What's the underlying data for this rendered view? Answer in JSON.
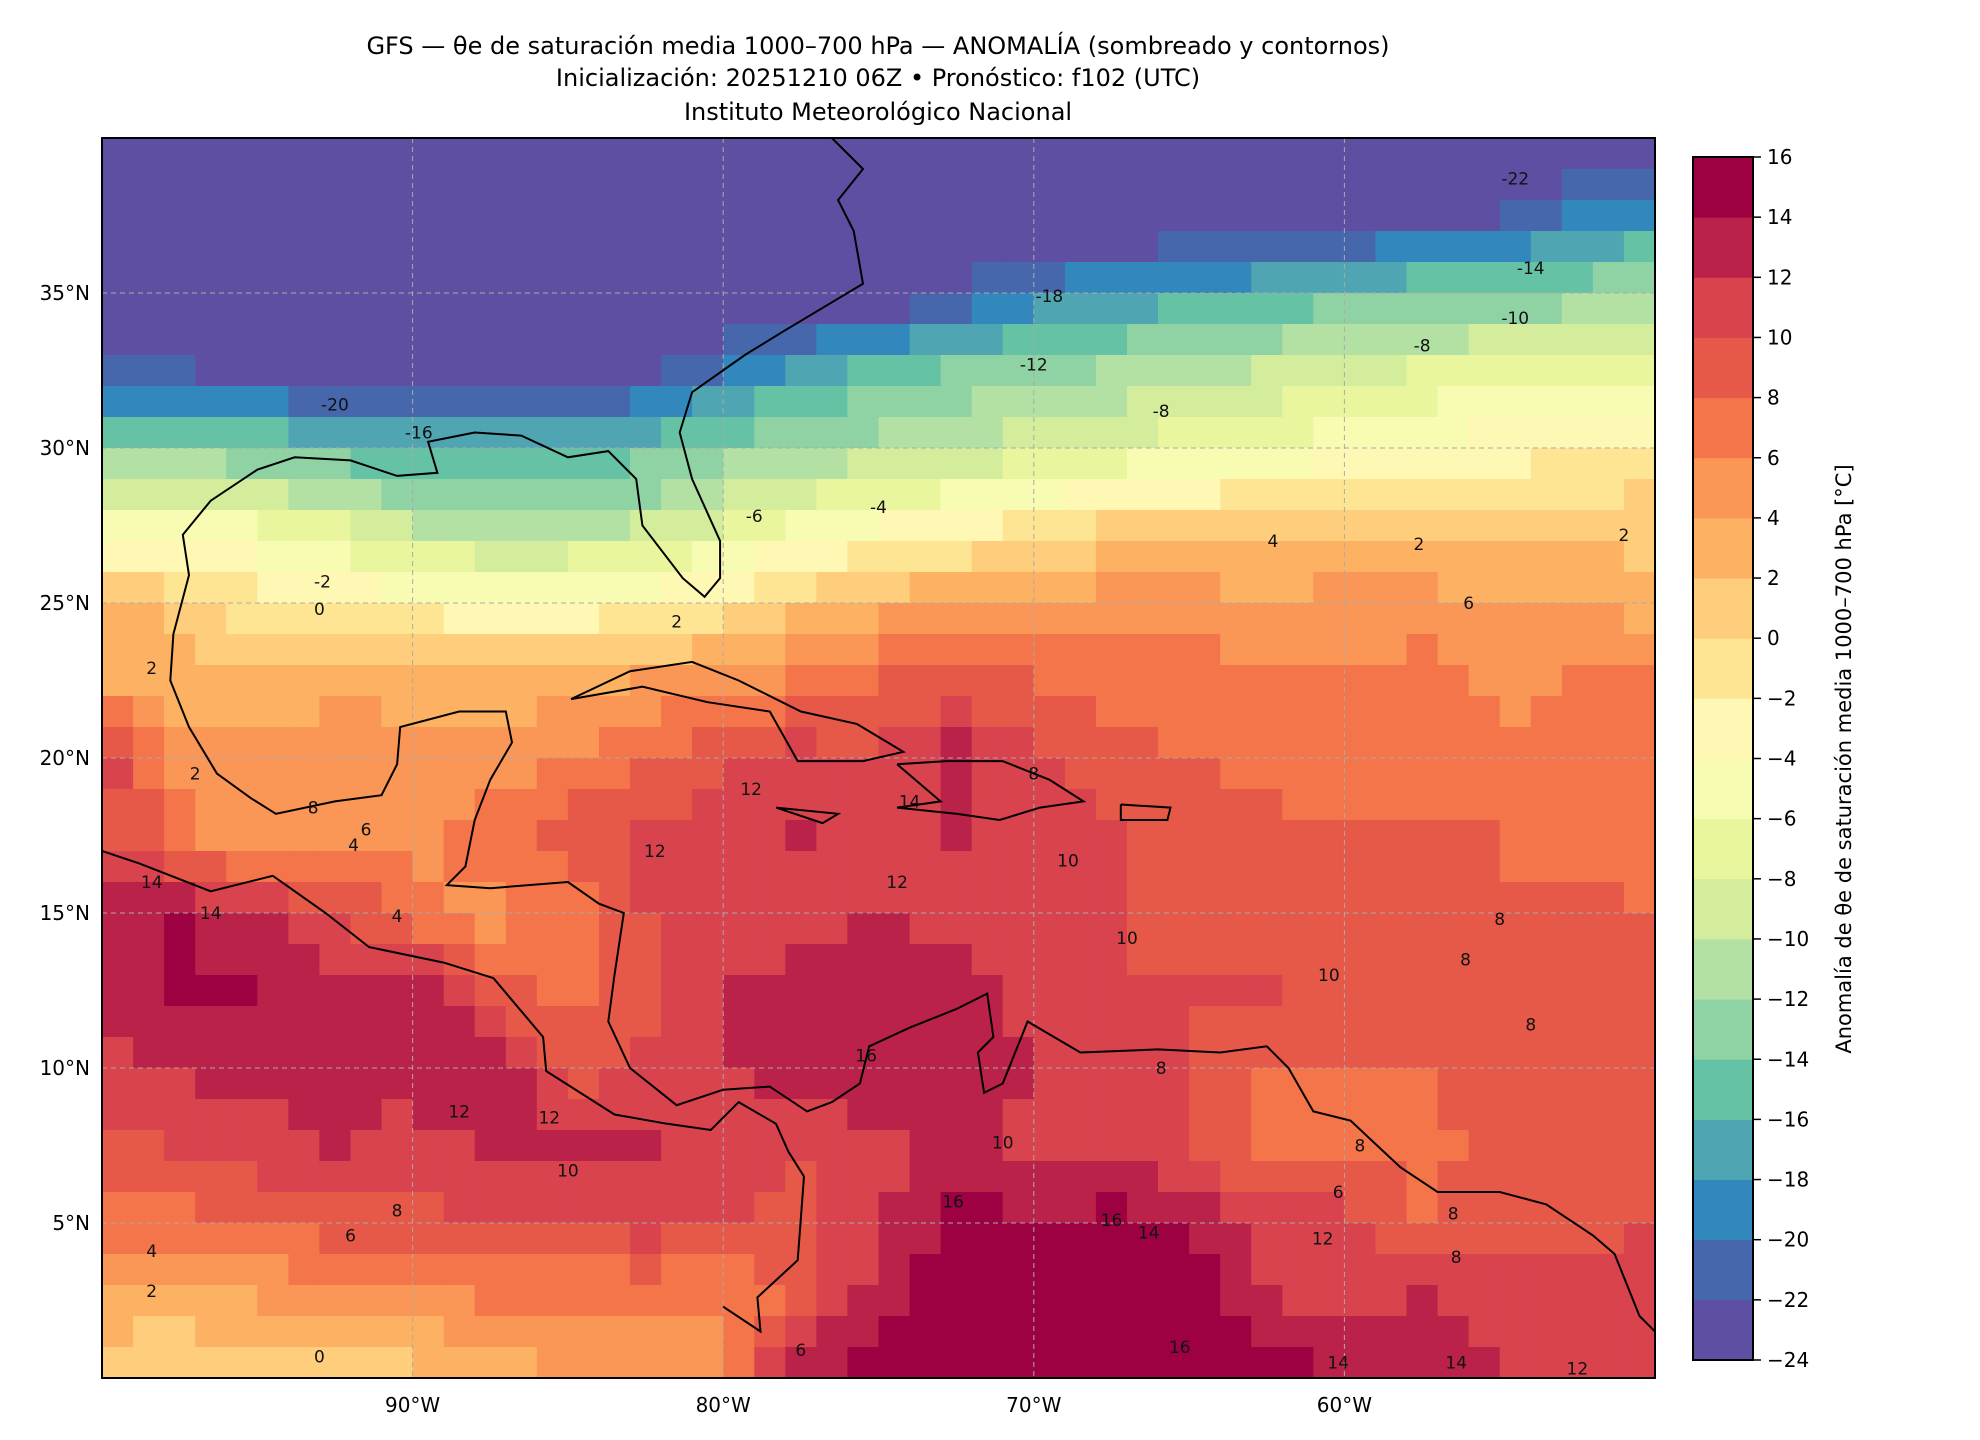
{
  "chart_data": {
    "type": "heatmap",
    "title_lines": [
      "GFS — θe de saturación media 1000–700 hPa — ANOMALÍA (sombreado y contornos)",
      "Inicialización: 20251210 06Z   •   Pronóstico: f102 (UTC)",
      "Instituto Meteorológico Nacional"
    ],
    "colorbar_label": "Anomalía de θe de saturación media 1000–700 hPa [°C]",
    "xlim": [
      -100,
      -50
    ],
    "ylim": [
      0,
      40
    ],
    "x_ticks": [
      {
        "value": -90,
        "label": "90°W"
      },
      {
        "value": -80,
        "label": "80°W"
      },
      {
        "value": -70,
        "label": "70°W"
      },
      {
        "value": -60,
        "label": "60°W"
      }
    ],
    "y_ticks": [
      {
        "value": 35,
        "label": "35°N"
      },
      {
        "value": 30,
        "label": "30°N"
      },
      {
        "value": 25,
        "label": "25°N"
      },
      {
        "value": 20,
        "label": "20°N"
      },
      {
        "value": 15,
        "label": "15°N"
      },
      {
        "value": 10,
        "label": "10°N"
      },
      {
        "value": 5,
        "label": "5°N"
      }
    ],
    "grid": true,
    "colorbar_ticks": [
      "16",
      "14",
      "12",
      "10",
      "8",
      "6",
      "4",
      "2",
      "0",
      "−2",
      "−4",
      "−6",
      "−8",
      "−10",
      "−12",
      "−14",
      "−16",
      "−18",
      "−20",
      "−22",
      "−24"
    ],
    "levels": [
      -24,
      -22,
      -20,
      -18,
      -16,
      -14,
      -12,
      -10,
      -8,
      -6,
      -4,
      -2,
      0,
      2,
      4,
      6,
      8,
      10,
      12,
      14,
      16
    ],
    "level_colors": [
      "#5e4fa2",
      "#4767ad",
      "#3288bd",
      "#4fa5b1",
      "#66c2a5",
      "#8fd2a4",
      "#b3e0a3",
      "#d3ed9c",
      "#e9f69d",
      "#f8fbb2",
      "#fff8b4",
      "#fee593",
      "#fece7c",
      "#fdb163",
      "#fa9656",
      "#f47549",
      "#e65848",
      "#d8434e",
      "#bb2249",
      "#9e0142"
    ],
    "grid_lons": [
      -100,
      -97.5,
      -95,
      -92.5,
      -90,
      -87.5,
      -85,
      -82.5,
      -80,
      -77.5,
      -75,
      -72.5,
      -70,
      -67.5,
      -65,
      -62.5,
      -60,
      -57.5,
      -55,
      -52.5,
      -50
    ],
    "grid_lats": [
      40,
      37.5,
      35,
      32.5,
      30,
      27.5,
      25,
      22.5,
      20,
      17.5,
      15,
      12.5,
      10,
      7.5,
      5,
      2.5,
      0
    ],
    "values": [
      [
        -25,
        -25,
        -25,
        -25,
        -25,
        -25,
        -25,
        -25,
        -25,
        -25,
        -25,
        -25,
        -25,
        -25,
        -25,
        -25,
        -25,
        -25,
        -25,
        -24,
        -24
      ],
      [
        -25,
        -25,
        -25,
        -25,
        -25,
        -25,
        -25,
        -25,
        -25,
        -25,
        -25,
        -25,
        -25,
        -25,
        -25,
        -25,
        -24,
        -23,
        -22,
        -20,
        -18
      ],
      [
        -25,
        -25,
        -25,
        -25,
        -25,
        -25,
        -25,
        -25,
        -25,
        -25,
        -25,
        -22,
        -19,
        -18,
        -17,
        -16,
        -15,
        -14,
        -14,
        -13,
        -12
      ],
      [
        -22,
        -22,
        -23,
        -24,
        -24,
        -25,
        -24,
        -23,
        -20,
        -17,
        -15,
        -14,
        -13,
        -12,
        -11,
        -10,
        -9,
        -8,
        -7,
        -7,
        -6
      ],
      [
        -13,
        -13,
        -14,
        -15,
        -16,
        -16,
        -16,
        -15,
        -13,
        -12,
        -11,
        -10,
        -9,
        -8,
        -7,
        -6,
        -5,
        -4,
        -3,
        -2,
        -1
      ],
      [
        -6,
        -5,
        -6,
        -8,
        -10,
        -11,
        -11,
        -10,
        -8,
        -6,
        -4,
        -3,
        -1,
        0,
        1,
        1,
        1,
        1,
        1,
        1,
        1
      ],
      [
        3,
        1,
        -1,
        -2,
        -3,
        -4,
        -4,
        -3,
        -1,
        1,
        3,
        4,
        4,
        5,
        5,
        4,
        5,
        5,
        4,
        4,
        3
      ],
      [
        4,
        3,
        2,
        3,
        3,
        3,
        3,
        4,
        5,
        6,
        8,
        8,
        8,
        7,
        7,
        6,
        6,
        7,
        5,
        6,
        6
      ],
      [
        12,
        5,
        5,
        6,
        5,
        5,
        6,
        8,
        10,
        11,
        10,
        13,
        10,
        9,
        8,
        7,
        7,
        7,
        7,
        7,
        7
      ],
      [
        10,
        7,
        4,
        5,
        5,
        7,
        9,
        10,
        11,
        12,
        11,
        12,
        11,
        10,
        9,
        9,
        8,
        8,
        8,
        7,
        7
      ],
      [
        13,
        14,
        12,
        10,
        7,
        5,
        7,
        10,
        11,
        11,
        12,
        11,
        11,
        10,
        9,
        9,
        9,
        9,
        8,
        9,
        8
      ],
      [
        13,
        14,
        14,
        13,
        14,
        9,
        7,
        9,
        12,
        13,
        14,
        13,
        11,
        10,
        10,
        10,
        9,
        9,
        8,
        8,
        8
      ],
      [
        11,
        12,
        13,
        13,
        13,
        14,
        9,
        11,
        12,
        13,
        14,
        13,
        12,
        11,
        10,
        8,
        8,
        8,
        9,
        9,
        9
      ],
      [
        9,
        10,
        11,
        12,
        11,
        12,
        12,
        12,
        11,
        10,
        11,
        13,
        11,
        11,
        10,
        7,
        8,
        7,
        9,
        9,
        10
      ],
      [
        7,
        7,
        8,
        9,
        9,
        10,
        10,
        11,
        10,
        9,
        12,
        15,
        14,
        15,
        14,
        11,
        11,
        8,
        9,
        9,
        10
      ],
      [
        3,
        3,
        4,
        5,
        5,
        6,
        6,
        6,
        6,
        9,
        13,
        15,
        15,
        14,
        15,
        12,
        11,
        12,
        11,
        11,
        12
      ],
      [
        1,
        0,
        0,
        0,
        1,
        3,
        4,
        5,
        6,
        14,
        15,
        16,
        16,
        16,
        16,
        15,
        14,
        13,
        12,
        12,
        12
      ]
    ],
    "contour_labels": [
      {
        "text": "-22",
        "lon": -54.5,
        "lat": 38.7
      },
      {
        "text": "-14",
        "lon": -54.0,
        "lat": 35.8
      },
      {
        "text": "-10",
        "lon": -54.5,
        "lat": 34.2
      },
      {
        "text": "-8",
        "lon": -57.5,
        "lat": 33.3
      },
      {
        "text": "-18",
        "lon": -69.5,
        "lat": 34.9
      },
      {
        "text": "-12",
        "lon": -70.0,
        "lat": 32.7
      },
      {
        "text": "-8",
        "lon": -65.9,
        "lat": 31.2
      },
      {
        "text": "-20",
        "lon": -92.5,
        "lat": 31.4
      },
      {
        "text": "-16",
        "lon": -89.8,
        "lat": 30.5
      },
      {
        "text": "-6",
        "lon": -79.0,
        "lat": 27.8
      },
      {
        "text": "-4",
        "lon": -75.0,
        "lat": 28.1
      },
      {
        "text": "-2",
        "lon": -92.9,
        "lat": 25.7
      },
      {
        "text": "0",
        "lon": -93.0,
        "lat": 24.8
      },
      {
        "text": "2",
        "lon": -81.5,
        "lat": 24.4
      },
      {
        "text": "4",
        "lon": -62.3,
        "lat": 27.0
      },
      {
        "text": "2",
        "lon": -57.6,
        "lat": 26.9
      },
      {
        "text": "2",
        "lon": -51.0,
        "lat": 27.2
      },
      {
        "text": "6",
        "lon": -56.0,
        "lat": 25.0
      },
      {
        "text": "2",
        "lon": -98.4,
        "lat": 22.9
      },
      {
        "text": "2",
        "lon": -97.0,
        "lat": 19.5
      },
      {
        "text": "8",
        "lon": -93.2,
        "lat": 18.4
      },
      {
        "text": "6",
        "lon": -91.5,
        "lat": 17.7
      },
      {
        "text": "4",
        "lon": -91.9,
        "lat": 17.2
      },
      {
        "text": "14",
        "lon": -98.4,
        "lat": 16.0
      },
      {
        "text": "14",
        "lon": -96.5,
        "lat": 15.0
      },
      {
        "text": "4",
        "lon": -90.5,
        "lat": 14.9
      },
      {
        "text": "12",
        "lon": -79.1,
        "lat": 19.0
      },
      {
        "text": "14",
        "lon": -74.0,
        "lat": 18.6
      },
      {
        "text": "8",
        "lon": -70.0,
        "lat": 19.5
      },
      {
        "text": "12",
        "lon": -82.2,
        "lat": 17.0
      },
      {
        "text": "12",
        "lon": -74.4,
        "lat": 16.0
      },
      {
        "text": "10",
        "lon": -68.9,
        "lat": 16.7
      },
      {
        "text": "10",
        "lon": -67.0,
        "lat": 14.2
      },
      {
        "text": "8",
        "lon": -55.0,
        "lat": 14.8
      },
      {
        "text": "8",
        "lon": -56.1,
        "lat": 13.5
      },
      {
        "text": "10",
        "lon": -60.5,
        "lat": 13.0
      },
      {
        "text": "8",
        "lon": -54.0,
        "lat": 11.4
      },
      {
        "text": "16",
        "lon": -75.4,
        "lat": 10.4
      },
      {
        "text": "8",
        "lon": -65.9,
        "lat": 10.0
      },
      {
        "text": "12",
        "lon": -88.5,
        "lat": 8.6
      },
      {
        "text": "12",
        "lon": -85.6,
        "lat": 8.4
      },
      {
        "text": "10",
        "lon": -71.0,
        "lat": 7.6
      },
      {
        "text": "10",
        "lon": -85.0,
        "lat": 6.7
      },
      {
        "text": "8",
        "lon": -59.5,
        "lat": 7.5
      },
      {
        "text": "6",
        "lon": -60.2,
        "lat": 6.0
      },
      {
        "text": "16",
        "lon": -72.6,
        "lat": 5.7
      },
      {
        "text": "8",
        "lon": -90.5,
        "lat": 5.4
      },
      {
        "text": "16",
        "lon": -67.5,
        "lat": 5.1
      },
      {
        "text": "8",
        "lon": -56.5,
        "lat": 5.3
      },
      {
        "text": "14",
        "lon": -66.3,
        "lat": 4.7
      },
      {
        "text": "6",
        "lon": -92.0,
        "lat": 4.6
      },
      {
        "text": "12",
        "lon": -60.7,
        "lat": 4.5
      },
      {
        "text": "4",
        "lon": -98.4,
        "lat": 4.1
      },
      {
        "text": "8",
        "lon": -56.4,
        "lat": 3.9
      },
      {
        "text": "2",
        "lon": -98.4,
        "lat": 2.8
      },
      {
        "text": "16",
        "lon": -65.3,
        "lat": 1.0
      },
      {
        "text": "6",
        "lon": -77.5,
        "lat": 0.9
      },
      {
        "text": "0",
        "lon": -93.0,
        "lat": 0.7
      },
      {
        "text": "14",
        "lon": -60.2,
        "lat": 0.5
      },
      {
        "text": "14",
        "lon": -56.4,
        "lat": 0.5
      },
      {
        "text": "12",
        "lon": -52.5,
        "lat": 0.3
      }
    ]
  }
}
